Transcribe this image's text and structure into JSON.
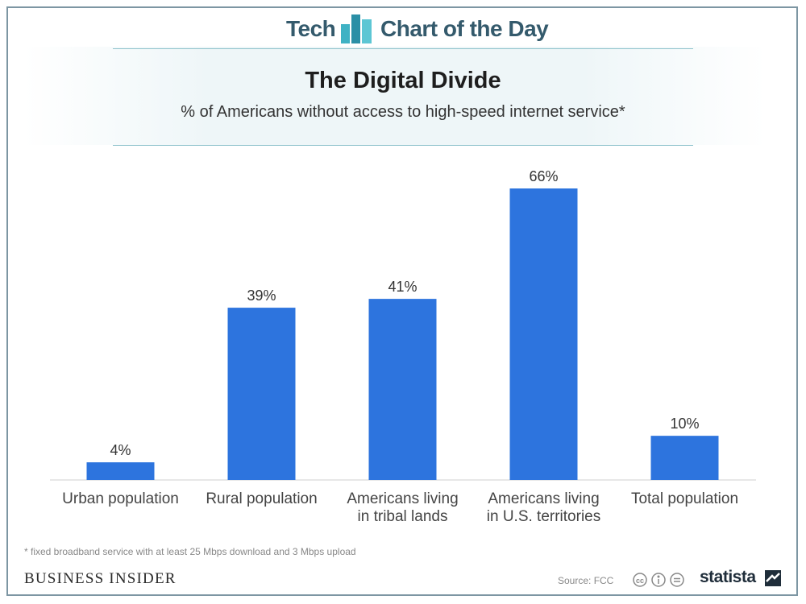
{
  "header": {
    "brand_left": "Tech",
    "brand_right": "Chart of the Day",
    "title": "The Digital Divide",
    "subtitle": "% of Americans without access to high-speed internet service*"
  },
  "chart_data": {
    "type": "bar",
    "title": "The Digital Divide",
    "subtitle": "% of Americans without access to high-speed internet service*",
    "categories": [
      [
        "Urban population"
      ],
      [
        "Rural population"
      ],
      [
        "Americans living",
        "in tribal lands"
      ],
      [
        "Americans living",
        "in U.S. territories"
      ],
      [
        "Total population"
      ]
    ],
    "values": [
      4,
      39,
      41,
      66,
      10
    ],
    "value_labels": [
      "4%",
      "39%",
      "41%",
      "66%",
      "10%"
    ],
    "bar_color": "#2d74de",
    "ylim": [
      0,
      70
    ],
    "grid": false,
    "legend": "none"
  },
  "footer": {
    "footnote": "* fixed broadband service with at least 25 Mbps download and 3 Mbps upload",
    "publisher": "BUSINESS INSIDER",
    "source": "Source: FCC",
    "license_icons": [
      "cc-icon",
      "attribution-icon",
      "noderivs-icon"
    ],
    "statista": "statista"
  }
}
